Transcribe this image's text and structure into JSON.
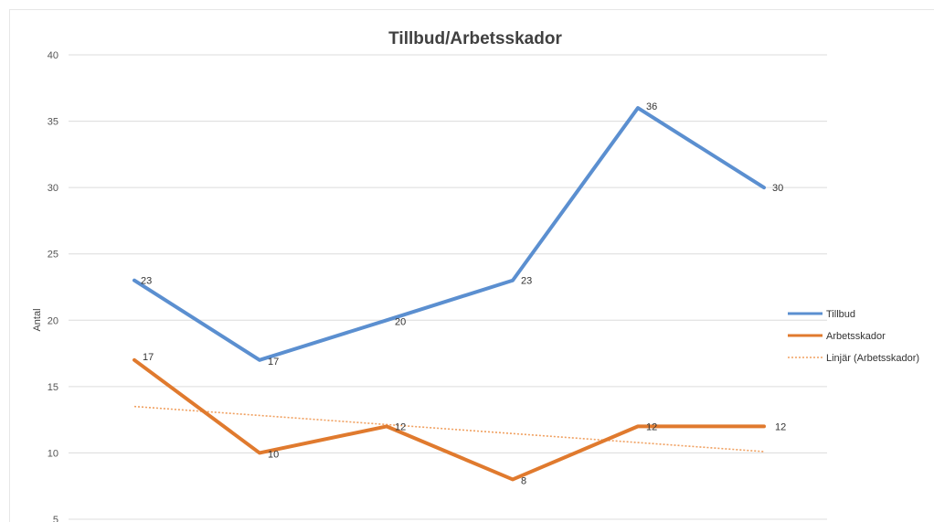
{
  "chart_data": {
    "type": "line",
    "title": "Tillbud/Arbetsskador",
    "xlabel": "",
    "ylabel": "Antal",
    "ylim": [
      5,
      40
    ],
    "yticks": [
      5,
      10,
      15,
      20,
      25,
      30,
      35,
      40
    ],
    "grid": true,
    "legend": "right",
    "categories": [
      "",
      "",
      "",
      "",
      "",
      ""
    ],
    "series": [
      {
        "name": "Tillbud",
        "values": [
          23,
          17,
          20,
          23,
          36,
          30
        ],
        "color": "#5b8fd0",
        "style": "solid"
      },
      {
        "name": "Arbetsskador",
        "values": [
          17,
          10,
          12,
          8,
          12,
          12
        ],
        "color": "#e07a2e",
        "style": "solid"
      }
    ],
    "trendline": {
      "name": "Linjär (Arbetsskador)",
      "start": 13.5,
      "end": 10.1,
      "color": "#f0a060",
      "style": "dotted"
    }
  }
}
